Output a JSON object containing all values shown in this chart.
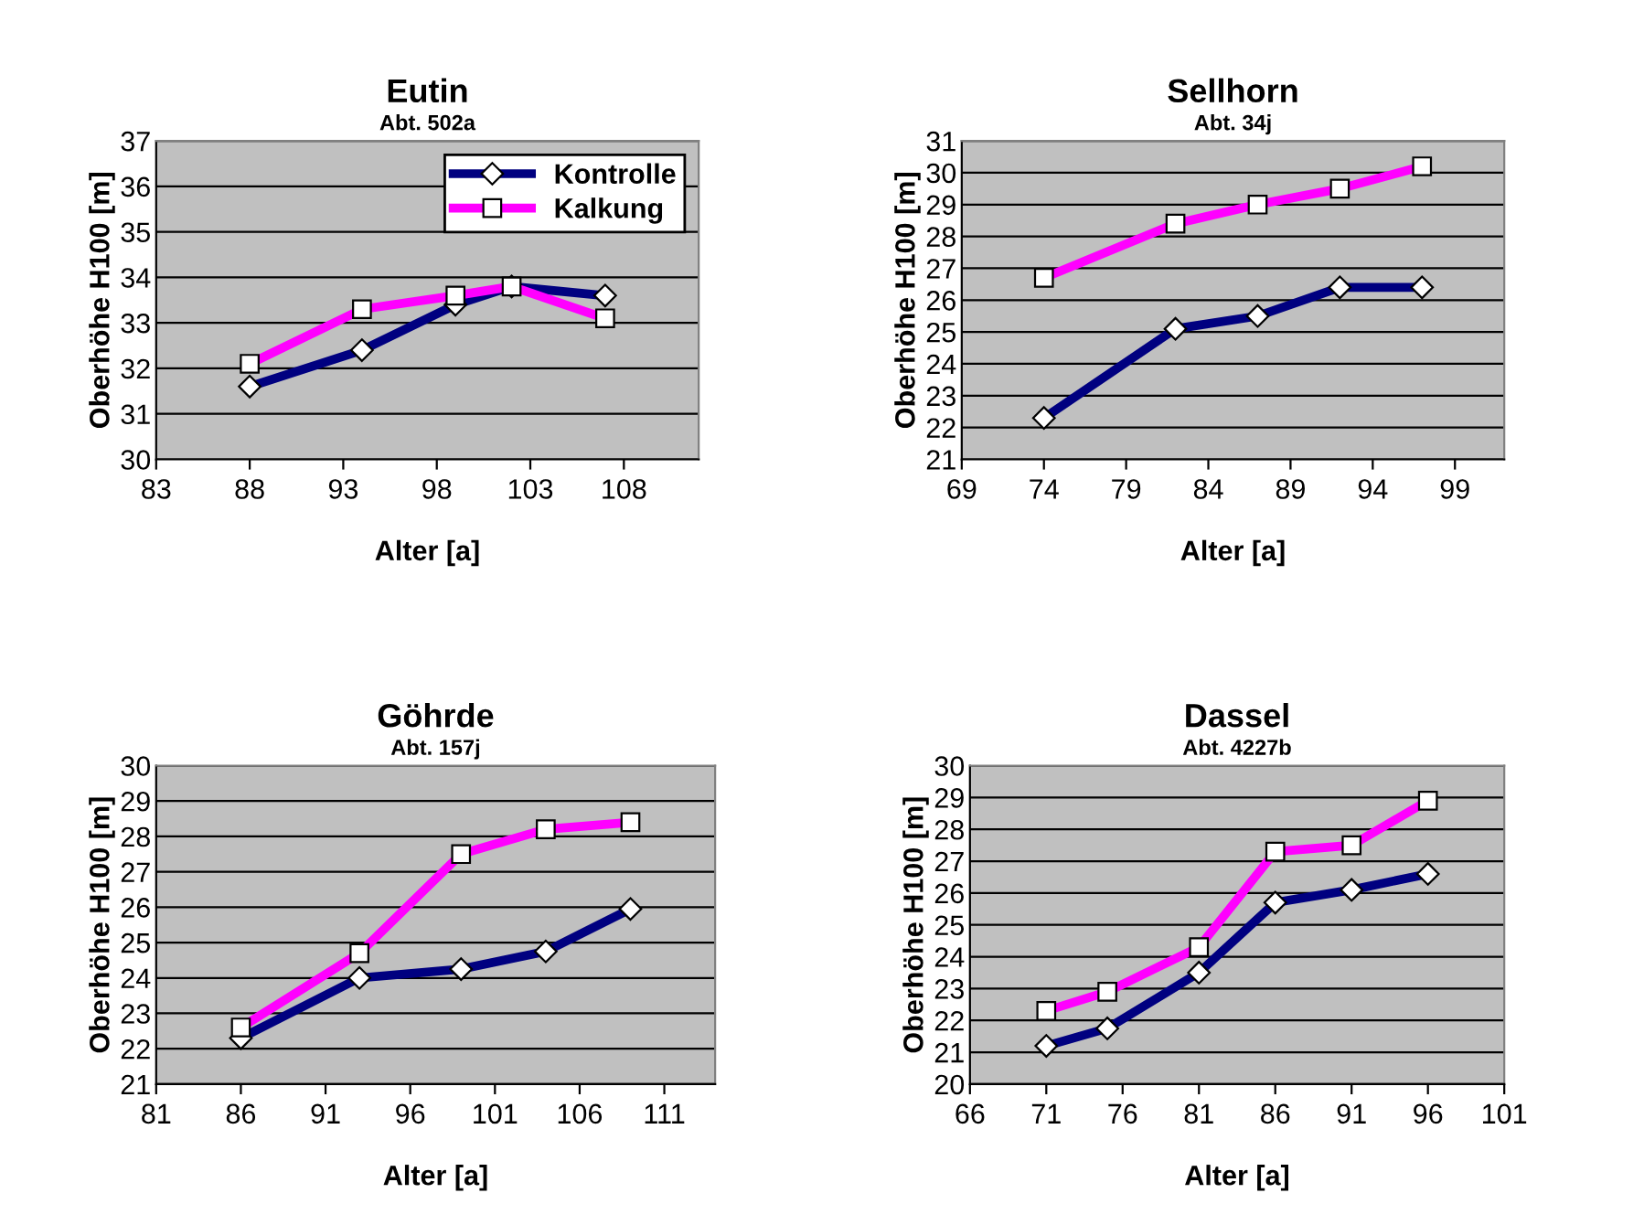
{
  "chart_data": [
    {
      "type": "line",
      "title": "Eutin",
      "subtitle": "Abt. 502a",
      "xlabel": "Alter [a]",
      "ylabel": "Oberhöhe H100 [m]",
      "xlim": [
        83,
        112
      ],
      "xticks": [
        83,
        88,
        93,
        98,
        103,
        108
      ],
      "ylim": [
        30,
        37
      ],
      "yticks": [
        30,
        31,
        32,
        33,
        34,
        35,
        36,
        37
      ],
      "grid": "y",
      "legend": "top right",
      "series": [
        {
          "name": "Kontrolle",
          "color": "#000080",
          "marker": "diamond",
          "x": [
            88,
            94,
            99,
            102,
            107
          ],
          "values": [
            31.6,
            32.4,
            33.4,
            33.8,
            33.6
          ]
        },
        {
          "name": "Kalkung",
          "color": "#ff00ff",
          "marker": "square",
          "x": [
            88,
            94,
            99,
            102,
            107
          ],
          "values": [
            32.1,
            33.3,
            33.6,
            33.8,
            33.1
          ]
        }
      ]
    },
    {
      "type": "line",
      "title": "Sellhorn",
      "subtitle": "Abt. 34j",
      "xlabel": "Alter [a]",
      "ylabel": "Oberhöhe H100 [m]",
      "xlim": [
        69,
        102
      ],
      "xticks": [
        69,
        74,
        79,
        84,
        89,
        94,
        99
      ],
      "ylim": [
        21,
        31
      ],
      "yticks": [
        21,
        22,
        23,
        24,
        25,
        26,
        27,
        28,
        29,
        30,
        31
      ],
      "grid": "y",
      "series": [
        {
          "color": "#000080",
          "marker": "diamond",
          "x": [
            74,
            82,
            87,
            92,
            97
          ],
          "values": [
            22.3,
            25.1,
            25.5,
            26.4,
            26.4
          ]
        },
        {
          "color": "#ff00ff",
          "marker": "square",
          "x": [
            74,
            82,
            87,
            92,
            97
          ],
          "values": [
            26.7,
            28.4,
            29.0,
            29.5,
            30.2
          ]
        }
      ]
    },
    {
      "type": "line",
      "title": "Göhrde",
      "subtitle": "Abt. 157j",
      "xlabel": "Alter [a]",
      "ylabel": "Oberhöhe H100 [m]",
      "xlim": [
        81,
        114
      ],
      "xticks": [
        81,
        86,
        91,
        96,
        101,
        106,
        111
      ],
      "ylim": [
        21,
        30
      ],
      "yticks": [
        21,
        22,
        23,
        24,
        25,
        26,
        27,
        28,
        29,
        30
      ],
      "grid": "y",
      "series": [
        {
          "color": "#000080",
          "marker": "diamond",
          "x": [
            86,
            93,
            99,
            104,
            109
          ],
          "values": [
            22.3,
            24.0,
            24.25,
            24.75,
            25.95
          ]
        },
        {
          "color": "#ff00ff",
          "marker": "square",
          "x": [
            86,
            93,
            99,
            104,
            109
          ],
          "values": [
            22.6,
            24.7,
            27.5,
            28.2,
            28.4
          ]
        }
      ]
    },
    {
      "type": "line",
      "title": "Dassel",
      "subtitle": "Abt. 4227b",
      "xlabel": "Alter [a]",
      "ylabel": "Oberhöhe H100 [m]",
      "xlim": [
        66,
        101
      ],
      "xticks": [
        66,
        71,
        76,
        81,
        86,
        91,
        96,
        101
      ],
      "ylim": [
        20,
        30
      ],
      "yticks": [
        20,
        21,
        22,
        23,
        24,
        25,
        26,
        27,
        28,
        29,
        30
      ],
      "grid": "y",
      "series": [
        {
          "color": "#000080",
          "marker": "diamond",
          "x": [
            71,
            75,
            81,
            86,
            91,
            96
          ],
          "values": [
            21.2,
            21.75,
            23.5,
            25.7,
            26.1,
            26.6
          ]
        },
        {
          "color": "#ff00ff",
          "marker": "square",
          "x": [
            71,
            75,
            81,
            86,
            91,
            96
          ],
          "values": [
            22.3,
            22.9,
            24.3,
            27.3,
            27.5,
            28.9
          ]
        }
      ]
    }
  ]
}
